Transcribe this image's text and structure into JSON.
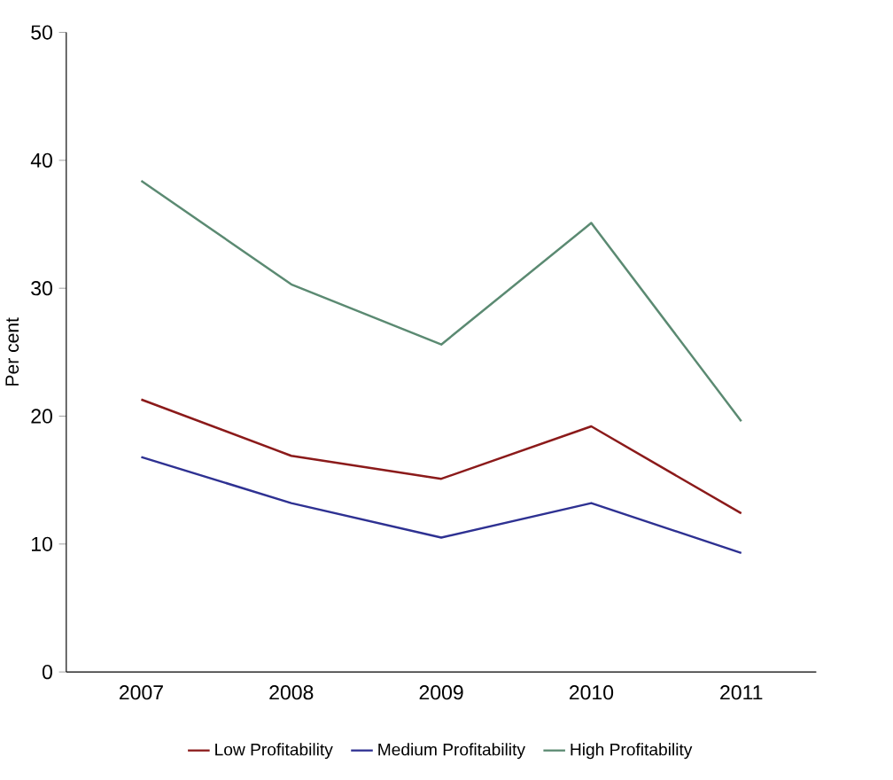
{
  "chart_data": {
    "type": "line",
    "ylabel": "Per cent",
    "categories": [
      "2007",
      "2008",
      "2009",
      "2010",
      "2011"
    ],
    "series": [
      {
        "name": "Low Profitability",
        "color": "#8b1a1a",
        "values": [
          21.3,
          16.9,
          15.1,
          19.2,
          12.4
        ]
      },
      {
        "name": "Medium Profitability",
        "color": "#2e3192",
        "values": [
          16.8,
          13.2,
          10.5,
          13.2,
          9.3
        ]
      },
      {
        "name": "High Profitability",
        "color": "#5b8a72",
        "values": [
          38.4,
          30.3,
          25.6,
          35.1,
          19.6
        ]
      }
    ],
    "ylim": [
      0,
      50
    ],
    "yticks": [
      0,
      10,
      20,
      30,
      40,
      50
    ],
    "legend": "bottom",
    "grid": false,
    "marker": "none",
    "line_style": "solid"
  }
}
